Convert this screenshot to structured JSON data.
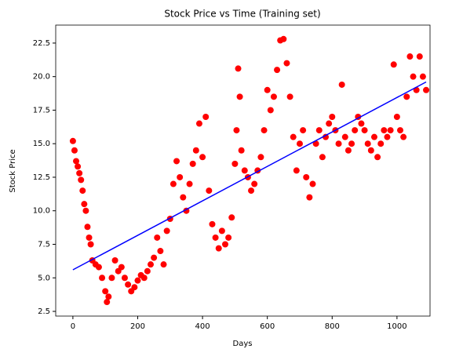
{
  "chart_data": {
    "type": "scatter",
    "title": "Stock Price vs Time (Training set)",
    "x_label": "Days",
    "y_label": "Stock Price",
    "xlim": [
      -53,
      1102
    ],
    "ylim": [
      2.15,
      23.84
    ],
    "xticks": [
      0,
      200,
      400,
      600,
      800,
      1000
    ],
    "yticks": [
      2.5,
      {
        "value": 5,
        "label": "5.0"
      },
      7.5,
      {
        "value": 10,
        "label": "10.0"
      },
      12.5,
      {
        "value": 15,
        "label": "15.0"
      },
      17.5,
      {
        "value": 20,
        "label": "20.0"
      },
      22.5
    ],
    "series": [
      {
        "color": "#ff0000",
        "x": [
          0,
          5,
          10,
          15,
          20,
          25,
          30,
          35,
          40,
          45,
          50,
          55,
          60,
          70,
          80,
          90,
          100,
          105,
          110,
          120,
          130,
          140,
          150,
          160,
          170,
          180,
          190,
          200,
          210,
          220,
          230,
          240,
          250,
          260,
          270,
          280,
          290,
          300,
          310,
          320,
          330,
          340,
          350,
          360,
          370,
          380,
          390,
          400,
          410,
          420,
          430,
          440,
          450,
          460,
          470,
          480,
          490,
          500,
          505,
          510,
          515,
          520,
          530,
          540,
          550,
          560,
          570,
          580,
          590,
          600,
          610,
          620,
          630,
          640,
          650,
          660,
          670,
          680,
          690,
          700,
          710,
          720,
          730,
          740,
          750,
          760,
          770,
          780,
          790,
          800,
          810,
          820,
          830,
          840,
          850,
          860,
          870,
          880,
          890,
          900,
          910,
          920,
          930,
          940,
          950,
          960,
          970,
          980,
          990,
          1000,
          1010,
          1020,
          1030,
          1040,
          1050,
          1060,
          1070,
          1080,
          1090
        ],
        "values": [
          15.2,
          14.5,
          13.7,
          13.3,
          12.8,
          12.3,
          11.5,
          10.5,
          10.0,
          8.8,
          8.0,
          7.5,
          6.3,
          6.0,
          5.8,
          5.0,
          4.0,
          3.2,
          3.6,
          5.0,
          6.3,
          5.5,
          5.8,
          5.0,
          4.5,
          4.0,
          4.3,
          4.8,
          5.2,
          5.0,
          5.5,
          6.0,
          6.5,
          8.0,
          7.0,
          6.0,
          8.5,
          9.4,
          12.0,
          13.7,
          12.5,
          11.0,
          10.0,
          12.0,
          13.5,
          14.5,
          16.5,
          14.0,
          17.0,
          11.5,
          9.0,
          8.0,
          7.2,
          8.5,
          7.5,
          8.0,
          9.5,
          13.5,
          16.0,
          20.6,
          18.5,
          14.5,
          13.0,
          12.5,
          11.5,
          12.0,
          13.0,
          14.0,
          16.0,
          19.0,
          17.5,
          18.5,
          20.5,
          22.7,
          22.8,
          21.0,
          18.5,
          15.5,
          13.0,
          15.0,
          16.0,
          12.5,
          11.0,
          12.0,
          15.0,
          16.0,
          14.0,
          15.5,
          16.5,
          17.0,
          16.0,
          15.0,
          19.4,
          15.5,
          14.5,
          15.0,
          16.0,
          17.0,
          16.5,
          16.0,
          15.0,
          14.5,
          15.5,
          14.0,
          15.0,
          16.0,
          15.5,
          16.0,
          20.9,
          17.0,
          16.0,
          15.5,
          18.5,
          21.5,
          20.0,
          19.0,
          21.5,
          20.0,
          19.0
        ]
      }
    ],
    "lines": [
      {
        "color": "#0000ff",
        "x": [
          0,
          1090
        ],
        "values": [
          5.6,
          19.6
        ]
      }
    ]
  }
}
